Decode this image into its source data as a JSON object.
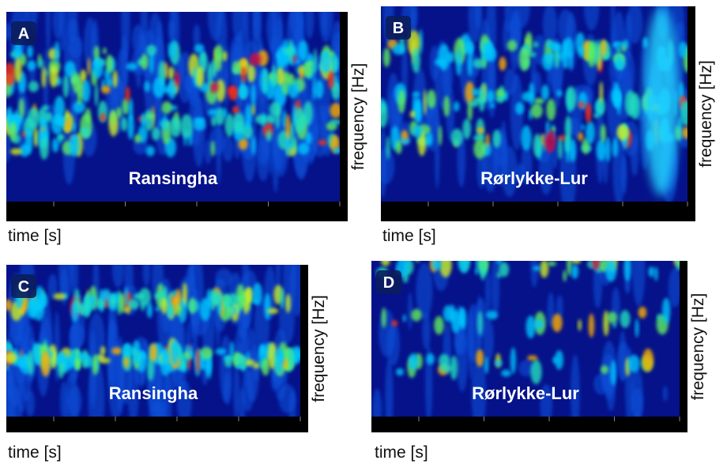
{
  "panels": [
    {
      "label": "A",
      "name": "Ransingha",
      "x_label": "time [s]",
      "y_label": "frequency [Hz]"
    },
    {
      "label": "B",
      "name": "Rørlykke-Lur",
      "x_label": "time [s]",
      "y_label": "frequency [Hz]"
    },
    {
      "label": "C",
      "name": "Ransingha",
      "x_label": "time [s]",
      "y_label": "frequency [Hz]"
    },
    {
      "label": "D",
      "name": "Rørlykke-Lur",
      "x_label": "time [s]",
      "y_label": "frequency [Hz]"
    }
  ]
}
